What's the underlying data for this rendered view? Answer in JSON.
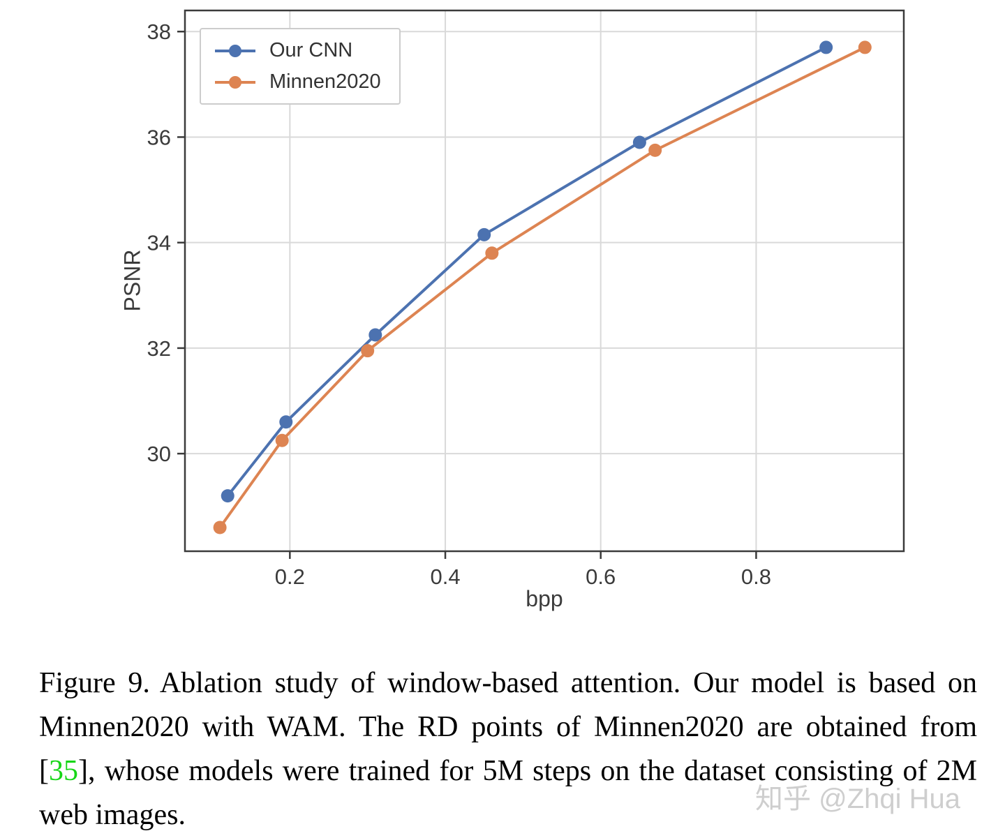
{
  "chart_data": {
    "type": "line",
    "title": "",
    "xlabel": "bpp",
    "ylabel": "PSNR",
    "xlim": [
      0.065,
      0.99
    ],
    "ylim": [
      28.15,
      38.4
    ],
    "x_ticks": [
      0.2,
      0.4,
      0.6,
      0.8
    ],
    "y_ticks": [
      30,
      32,
      34,
      36,
      38
    ],
    "grid": true,
    "legend_position": "upper left",
    "series": [
      {
        "name": "Our CNN",
        "color": "#4c72b0",
        "x": [
          0.12,
          0.195,
          0.31,
          0.45,
          0.65,
          0.89
        ],
        "y": [
          29.2,
          30.6,
          32.25,
          34.15,
          35.9,
          37.7
        ]
      },
      {
        "name": "Minnen2020",
        "color": "#dd8452",
        "x": [
          0.11,
          0.19,
          0.3,
          0.46,
          0.67,
          0.94
        ],
        "y": [
          28.6,
          30.25,
          31.95,
          33.8,
          35.75,
          37.7
        ]
      }
    ]
  },
  "caption": {
    "label": "Figure 9.",
    "text_before_citation": "Ablation study of window-based attention. Our model is based on Minnen2020 with WAM. The RD points of Minnen2020 are obtained from [",
    "citation": "35",
    "text_after_citation": "], whose models were trained for 5M steps on the dataset consisting of 2M web images.",
    "citation_color": "#17d617"
  },
  "watermark": {
    "text": "知乎 @Zhqi Hua"
  }
}
